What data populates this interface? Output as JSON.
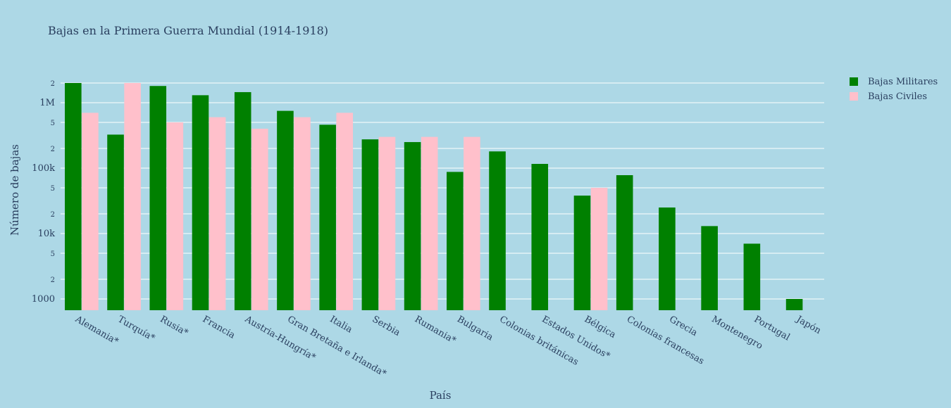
{
  "chart_data": {
    "type": "bar",
    "title": "Bajas en la Primera Guerra Mundial (1914-1918)",
    "x_label": "País",
    "y_label": "Número de bajas",
    "categories": [
      "Alemania*",
      "Turquía*",
      "Rusia*",
      "Francia",
      "Austria-Hungría*",
      "Gran Bretaña e Irlanda*",
      "Italia",
      "Serbia",
      "Rumania*",
      "Bulgaria",
      "Colonias británicas",
      "Estados Unidos*",
      "Bélgica",
      "Colonias francesas",
      "Grecia",
      "Montenegro",
      "Portugal",
      "Japón"
    ],
    "series": [
      {
        "name": "Bajas Militares",
        "color": "#008000",
        "values": [
          2000000,
          325000,
          1800000,
          1300000,
          1450000,
          750000,
          460000,
          275000,
          250000,
          87500,
          180000,
          116000,
          38000,
          78000,
          25000,
          13000,
          7000,
          1000
        ]
      },
      {
        "name": "Bajas Civiles",
        "color": "#ffc0cb",
        "values": [
          700000,
          2000000,
          500000,
          600000,
          400000,
          600000,
          700000,
          300000,
          300000,
          300000,
          null,
          null,
          50000,
          null,
          null,
          null,
          null,
          null
        ]
      }
    ],
    "log_scale": true,
    "grid": true,
    "legend_position": "top-right",
    "ylim": [
      673,
      2100000
    ],
    "yticks": [
      1000,
      {
        "value": 2000,
        "label": "2"
      },
      {
        "value": 5000,
        "label": "5"
      },
      {
        "value": 10000,
        "label": "10k"
      },
      {
        "value": 20000,
        "label": "2"
      },
      {
        "value": 50000,
        "label": "5"
      },
      {
        "value": 100000,
        "label": "100k"
      },
      {
        "value": 200000,
        "label": "2"
      },
      {
        "value": 500000,
        "label": "5"
      },
      {
        "value": 1000000,
        "label": "1M"
      },
      {
        "value": 2000000,
        "label": "2"
      }
    ]
  }
}
